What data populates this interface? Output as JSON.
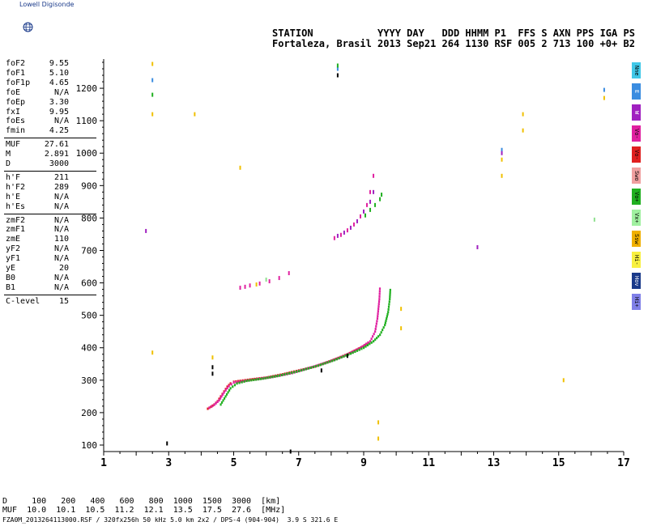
{
  "logo": {
    "text": "Lowell Digisonde"
  },
  "header": {
    "labels_row": "STATION           YYYY DAY   DDD HHMM P1  FFS S AXN PPS IGA PS",
    "values_row": "Fortaleza, Brasil 2013 Sep21 264 1130 RSF 005 2 713 100 +0+ B2"
  },
  "params_groups": [
    [
      {
        "name": "foF2",
        "value": "9.55"
      },
      {
        "name": "foF1",
        "value": "5.10"
      },
      {
        "name": "foF1p",
        "value": "4.65"
      },
      {
        "name": "foE",
        "value": "N/A"
      },
      {
        "name": "foEp",
        "value": "3.30"
      },
      {
        "name": "fxI",
        "value": "9.95"
      },
      {
        "name": "foEs",
        "value": "N/A"
      },
      {
        "name": "fmin",
        "value": "4.25"
      }
    ],
    [
      {
        "name": "MUF",
        "value": "27.61"
      },
      {
        "name": "M",
        "value": "2.891"
      },
      {
        "name": "D",
        "value": "3000"
      }
    ],
    [
      {
        "name": "h'F",
        "value": "211"
      },
      {
        "name": "h'F2",
        "value": "289"
      },
      {
        "name": "h'E",
        "value": "N/A"
      },
      {
        "name": "h'Es",
        "value": "N/A"
      }
    ],
    [
      {
        "name": "zmF2",
        "value": "N/A"
      },
      {
        "name": "zmF1",
        "value": "N/A"
      },
      {
        "name": "zmE",
        "value": "110"
      },
      {
        "name": "yF2",
        "value": "N/A"
      },
      {
        "name": "yF1",
        "value": "N/A"
      },
      {
        "name": "yE",
        "value": "20"
      },
      {
        "name": "B0",
        "value": "N/A"
      },
      {
        "name": "B1",
        "value": "N/A"
      }
    ],
    [
      {
        "name": "C-level",
        "value": "15"
      }
    ]
  ],
  "legend": [
    {
      "label": "Nne",
      "color": "#40c8e8"
    },
    {
      "label": "E",
      "color": "#3a8ce0"
    },
    {
      "label": "W",
      "color": "#a020c0"
    },
    {
      "label": "Vo-",
      "color": "#e020a0"
    },
    {
      "label": "Vo-",
      "color": "#e02020"
    },
    {
      "label": "Swo",
      "color": "#f0a0a0"
    },
    {
      "label": "Vo+",
      "color": "#20b020"
    },
    {
      "label": "Vx+",
      "color": "#a0f0a0"
    },
    {
      "label": "Ssw",
      "color": "#f0b000"
    },
    {
      "label": "Hi-",
      "color": "#f8f040"
    },
    {
      "label": "Hov",
      "color": "#1a3a8a"
    },
    {
      "label": "Hi+",
      "color": "#8080e8"
    }
  ],
  "footer": {
    "d_row": "D     100   200   400   600   800  1000  1500  3000  [km]",
    "muf_row": "MUF  10.0  10.1  10.5  11.2  12.1  13.5  17.5  27.6  [MHz]",
    "file_row": "FZA0M_2013264113000.RSF / 320fx256h 50 kHz 5.0 km 2x2 / DPS-4 (904-904)  3.9 S 321.6 E"
  },
  "chart_data": {
    "type": "scatter",
    "x_ticks": [
      "1",
      "3",
      "5",
      "7",
      "9",
      "11",
      "13",
      "15",
      "17"
    ],
    "y_ticks": [
      "100",
      "200",
      "300",
      "400",
      "500",
      "600",
      "700",
      "800",
      "900",
      "1000",
      "1100",
      "1200"
    ],
    "xlim": [
      1,
      17
    ],
    "ylim": [
      80,
      1290
    ],
    "colors": {
      "red": "#e02020",
      "magenta": "#e020a0",
      "green": "#20b020",
      "purple": "#a020c0",
      "black": "#000000",
      "yellow": "#f0c000",
      "blue": "#3a8ce0",
      "lightgreen": "#90e090"
    },
    "traces": [
      {
        "color": "red",
        "points": [
          [
            4.2,
            212
          ],
          [
            4.3,
            218
          ],
          [
            4.4,
            225
          ],
          [
            4.5,
            235
          ],
          [
            4.6,
            250
          ],
          [
            4.7,
            265
          ],
          [
            4.8,
            280
          ],
          [
            4.9,
            290
          ],
          [
            5.0,
            295
          ],
          [
            5.2,
            298
          ],
          [
            5.5,
            302
          ],
          [
            6.0,
            308
          ],
          [
            6.5,
            318
          ],
          [
            7.0,
            330
          ],
          [
            7.5,
            342
          ],
          [
            8.0,
            360
          ],
          [
            8.5,
            380
          ],
          [
            9.0,
            405
          ],
          [
            9.2,
            420
          ]
        ]
      },
      {
        "color": "magenta",
        "points": [
          [
            4.25,
            215
          ],
          [
            4.4,
            224
          ],
          [
            4.55,
            238
          ],
          [
            4.7,
            262
          ],
          [
            4.85,
            282
          ],
          [
            5.0,
            293
          ],
          [
            5.3,
            297
          ],
          [
            5.7,
            303
          ],
          [
            6.2,
            310
          ],
          [
            6.8,
            322
          ],
          [
            7.4,
            340
          ],
          [
            7.9,
            356
          ],
          [
            8.4,
            375
          ],
          [
            8.9,
            400
          ],
          [
            9.2,
            420
          ],
          [
            9.35,
            450
          ],
          [
            9.42,
            490
          ],
          [
            9.48,
            550
          ],
          [
            9.5,
            590
          ]
        ]
      },
      {
        "color": "green",
        "points": [
          [
            4.6,
            225
          ],
          [
            4.75,
            250
          ],
          [
            4.9,
            275
          ],
          [
            5.1,
            290
          ],
          [
            5.4,
            298
          ],
          [
            5.9,
            305
          ],
          [
            6.4,
            314
          ],
          [
            7.0,
            328
          ],
          [
            7.6,
            345
          ],
          [
            8.1,
            362
          ],
          [
            8.6,
            382
          ],
          [
            9.0,
            400
          ],
          [
            9.3,
            420
          ],
          [
            9.5,
            440
          ],
          [
            9.65,
            470
          ],
          [
            9.75,
            510
          ],
          [
            9.8,
            550
          ],
          [
            9.82,
            585
          ]
        ]
      },
      {
        "color": "magenta",
        "points": [
          [
            5.2,
            585
          ],
          [
            5.35,
            588
          ],
          [
            5.5,
            592
          ],
          [
            5.8,
            598
          ],
          [
            6.1,
            605
          ],
          [
            6.4,
            615
          ],
          [
            6.7,
            630
          ]
        ]
      },
      {
        "color": "magenta",
        "points": [
          [
            8.1,
            738
          ],
          [
            8.3,
            748
          ],
          [
            8.5,
            762
          ],
          [
            8.7,
            780
          ],
          [
            8.9,
            805
          ],
          [
            9.1,
            840
          ],
          [
            9.2,
            880
          ],
          [
            9.3,
            930
          ]
        ]
      },
      {
        "color": "purple",
        "points": [
          [
            8.2,
            745
          ],
          [
            8.4,
            755
          ],
          [
            8.6,
            770
          ],
          [
            8.8,
            790
          ],
          [
            9.0,
            820
          ],
          [
            9.2,
            850
          ],
          [
            9.3,
            880
          ]
        ]
      },
      {
        "color": "green",
        "points": [
          [
            9.05,
            808
          ],
          [
            9.2,
            825
          ],
          [
            9.35,
            840
          ],
          [
            9.5,
            858
          ],
          [
            9.55,
            872
          ]
        ]
      },
      {
        "color": "black",
        "points": [
          [
            4.35,
            340
          ],
          [
            4.35,
            320
          ],
          [
            2.95,
            105
          ],
          [
            6.75,
            80
          ],
          [
            8.2,
            1240
          ],
          [
            7.7,
            330
          ],
          [
            8.5,
            375
          ]
        ]
      },
      {
        "color": "yellow",
        "points": [
          [
            2.5,
            1275
          ],
          [
            2.5,
            1120
          ],
          [
            3.8,
            1120
          ],
          [
            5.2,
            955
          ],
          [
            13.25,
            980
          ],
          [
            13.25,
            930
          ],
          [
            13.9,
            1120
          ],
          [
            13.9,
            1070
          ],
          [
            10.15,
            520
          ],
          [
            10.15,
            460
          ],
          [
            4.35,
            370
          ],
          [
            2.5,
            385
          ],
          [
            9.45,
            170
          ],
          [
            9.45,
            120
          ],
          [
            15.15,
            300
          ],
          [
            16.4,
            1170
          ],
          [
            5.7,
            595
          ]
        ]
      },
      {
        "color": "blue",
        "points": [
          [
            2.5,
            1225
          ],
          [
            8.2,
            1260
          ],
          [
            16.4,
            1195
          ],
          [
            13.25,
            1010
          ]
        ]
      },
      {
        "color": "green",
        "points": [
          [
            2.5,
            1180
          ],
          [
            8.2,
            1270
          ]
        ]
      },
      {
        "color": "purple",
        "points": [
          [
            2.3,
            760
          ],
          [
            12.5,
            710
          ],
          [
            13.25,
            1000
          ]
        ]
      },
      {
        "color": "lightgreen",
        "points": [
          [
            16.1,
            795
          ],
          [
            6.0,
            610
          ]
        ]
      }
    ]
  }
}
